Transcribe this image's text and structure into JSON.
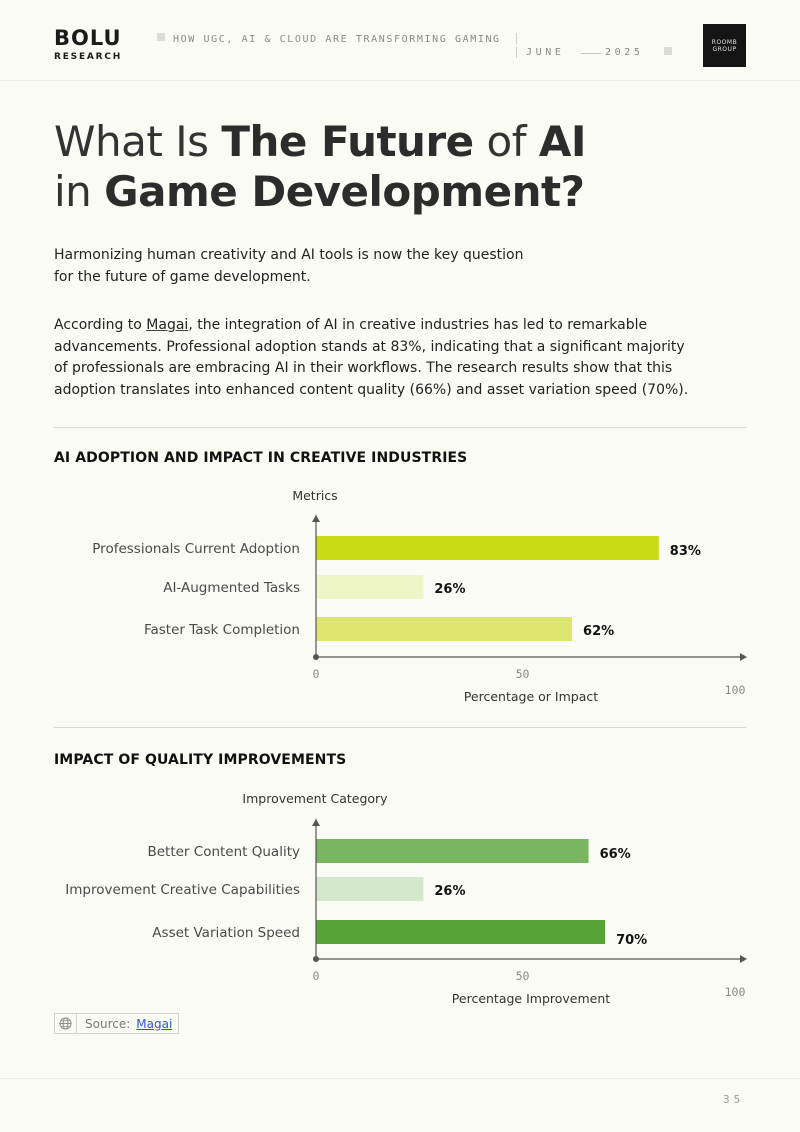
{
  "header": {
    "brand": "BOLU",
    "brand_sub": "RESEARCH",
    "report_title": "HOW UGC, AI & CLOUD ARE TRANSFORMING GAMING",
    "month": "JUNE",
    "year": "2025",
    "partner_line1": "ROOMB",
    "partner_line2": "GROUP"
  },
  "title": {
    "w1": "What Is ",
    "b1": "The Future",
    "w2": " of ",
    "b2": "AI",
    "w3": "in ",
    "b3": "Game Development?"
  },
  "intro": {
    "line1": "Harmonizing human creativity and AI tools is now the key question",
    "line2": "for the future of game development."
  },
  "body": {
    "l1a": "According to ",
    "l1link": "Magai",
    "l1b": ", the integration of AI in creative industries has led to remarkable",
    "l2": "advancements. Professional adoption stands at 83%, indicating that a significant majority",
    "l3": "of professionals are embracing AI in their workflows. The research results show that this",
    "l4": "adoption translates into enhanced content quality (66%) and asset variation speed (70%)."
  },
  "chart_data": [
    {
      "type": "bar",
      "orientation": "horizontal",
      "title": "AI ADOPTION AND IMPACT IN CREATIVE INDUSTRIES",
      "ylabel": "Metrics",
      "xlabel": "Percentage or Impact",
      "categories": [
        "Professionals Current Adoption",
        "AI-Augmented Tasks",
        "Faster Task Completion"
      ],
      "values": [
        83,
        26,
        62
      ],
      "value_labels": [
        "83%",
        "26%",
        "62%"
      ],
      "xlim": [
        0,
        100
      ],
      "xticks": [
        "0",
        "50",
        "100"
      ],
      "colors": [
        "#c8dc14",
        "#eef5c6",
        "#dde66e"
      ],
      "grid": false,
      "legend": "none"
    },
    {
      "type": "bar",
      "orientation": "horizontal",
      "title": "IMPACT OF QUALITY IMPROVEMENTS",
      "ylabel": "Improvement Category",
      "xlabel": "Percentage Improvement",
      "categories": [
        "Better Content Quality",
        "Improvement Creative Capabilities",
        "Asset Variation Speed"
      ],
      "values": [
        66,
        26,
        70
      ],
      "value_labels": [
        "66%",
        "26%",
        "70%"
      ],
      "xlim": [
        0,
        100
      ],
      "xticks": [
        "0",
        "50",
        "100"
      ],
      "colors": [
        "#7ab661",
        "#d3e7cb",
        "#56a33a"
      ],
      "grid": false,
      "legend": "none"
    }
  ],
  "source": {
    "label": "Source:",
    "link": "Magai",
    "icon": "globe-icon"
  },
  "page_number": "35"
}
